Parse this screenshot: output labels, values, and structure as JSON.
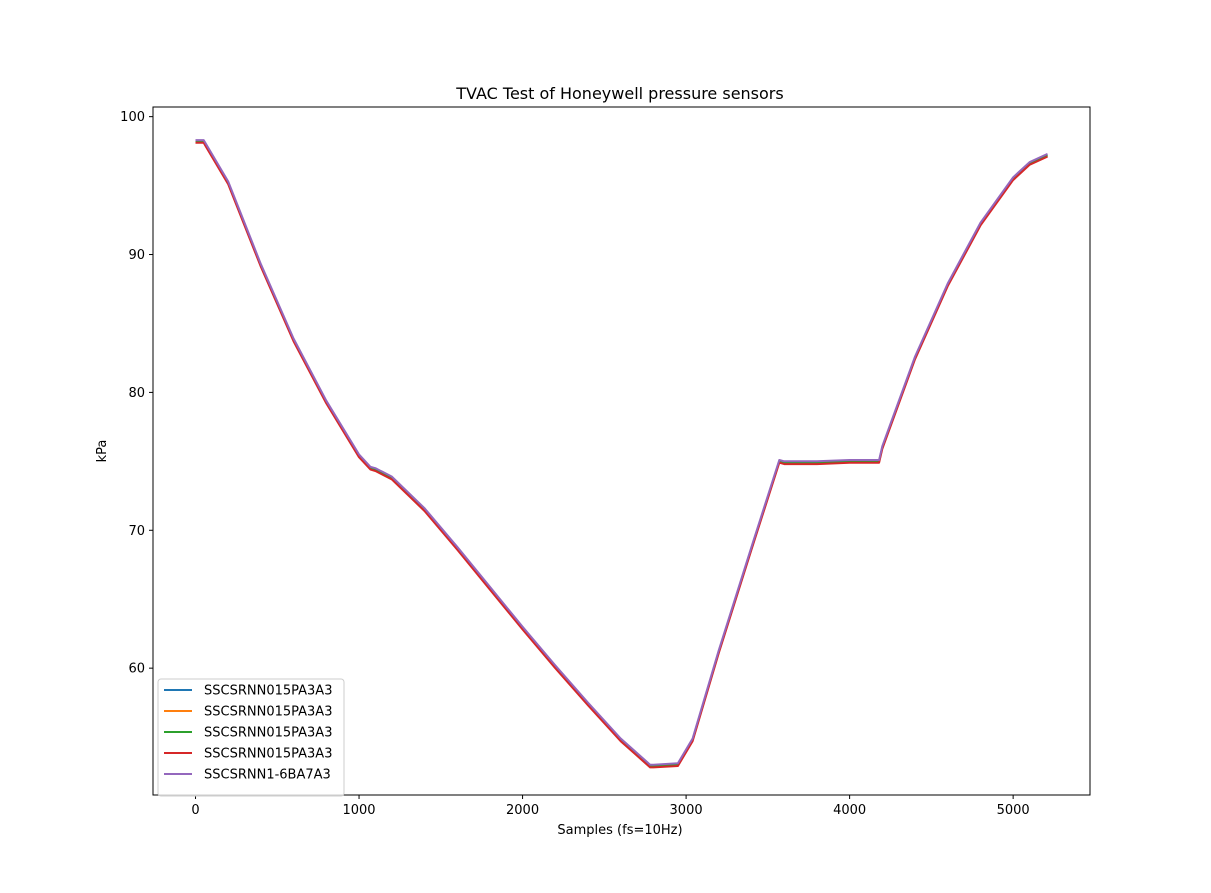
{
  "chart_data": {
    "type": "line",
    "title": "TVAC Test of Honeywell pressure sensors",
    "xlabel": "Samples (fs=10Hz)",
    "ylabel": "kPa",
    "xlim": [
      -260,
      5470
    ],
    "ylim": [
      50.8,
      100.7
    ],
    "xticks": [
      0,
      1000,
      2000,
      3000,
      4000,
      5000
    ],
    "yticks": [
      60,
      70,
      80,
      90,
      100
    ],
    "grid": false,
    "legend_position": "lower-left",
    "series": [
      {
        "name": "SSCSRNN015PA3A3",
        "color": "#1f77b4",
        "x": [
          0,
          50,
          60,
          200,
          400,
          600,
          800,
          1000,
          1070,
          1100,
          1200,
          1400,
          1600,
          1800,
          2000,
          2200,
          2400,
          2600,
          2780,
          2800,
          2950,
          3040,
          3200,
          3400,
          3570,
          3600,
          3800,
          4000,
          4180,
          4200,
          4400,
          4600,
          4800,
          5000,
          5100,
          5210
        ],
        "y": [
          98.2,
          98.2,
          98.0,
          95.2,
          89.2,
          83.8,
          79.3,
          75.4,
          74.5,
          74.4,
          73.8,
          71.5,
          68.7,
          65.8,
          62.9,
          60.1,
          57.4,
          54.8,
          52.9,
          52.9,
          53.0,
          54.8,
          61.2,
          68.7,
          75.0,
          74.9,
          74.9,
          75.0,
          75.0,
          76.0,
          82.5,
          87.8,
          92.2,
          95.5,
          96.6,
          97.2
        ]
      },
      {
        "name": "SSCSRNN015PA3A3",
        "color": "#ff7f0e",
        "x": [
          0,
          50,
          60,
          200,
          400,
          600,
          800,
          1000,
          1070,
          1100,
          1200,
          1400,
          1600,
          1800,
          2000,
          2200,
          2400,
          2600,
          2780,
          2800,
          2950,
          3040,
          3200,
          3400,
          3570,
          3600,
          3800,
          4000,
          4180,
          4200,
          4400,
          4600,
          4800,
          5000,
          5100,
          5210
        ],
        "y": [
          98.2,
          98.2,
          98.0,
          95.2,
          89.2,
          83.8,
          79.3,
          75.4,
          74.5,
          74.4,
          73.8,
          71.5,
          68.7,
          65.8,
          62.9,
          60.1,
          57.4,
          54.8,
          52.9,
          52.9,
          53.0,
          54.8,
          61.2,
          68.7,
          75.0,
          74.9,
          74.9,
          75.0,
          75.0,
          76.0,
          82.5,
          87.8,
          92.2,
          95.5,
          96.6,
          97.2
        ]
      },
      {
        "name": "SSCSRNN015PA3A3",
        "color": "#2ca02c",
        "x": [
          0,
          50,
          60,
          200,
          400,
          600,
          800,
          1000,
          1070,
          1100,
          1200,
          1400,
          1600,
          1800,
          2000,
          2200,
          2400,
          2600,
          2780,
          2800,
          2950,
          3040,
          3200,
          3400,
          3570,
          3600,
          3800,
          4000,
          4180,
          4200,
          4400,
          4600,
          4800,
          5000,
          5100,
          5210
        ],
        "y": [
          98.2,
          98.2,
          98.0,
          95.2,
          89.2,
          83.8,
          79.3,
          75.4,
          74.5,
          74.4,
          73.8,
          71.5,
          68.7,
          65.8,
          62.9,
          60.1,
          57.4,
          54.8,
          52.9,
          52.9,
          53.0,
          54.8,
          61.2,
          68.7,
          75.0,
          74.9,
          74.9,
          75.0,
          75.0,
          76.0,
          82.5,
          87.8,
          92.2,
          95.5,
          96.6,
          97.2
        ]
      },
      {
        "name": "SSCSRNN015PA3A3",
        "color": "#d62728",
        "x": [
          0,
          50,
          60,
          200,
          400,
          600,
          800,
          1000,
          1070,
          1100,
          1200,
          1400,
          1600,
          1800,
          2000,
          2200,
          2400,
          2600,
          2780,
          2800,
          2950,
          3040,
          3200,
          3400,
          3570,
          3600,
          3800,
          4000,
          4180,
          4200,
          4400,
          4600,
          4800,
          5000,
          5100,
          5210
        ],
        "y": [
          98.1,
          98.1,
          97.9,
          95.1,
          89.1,
          83.7,
          79.2,
          75.3,
          74.4,
          74.3,
          73.7,
          71.4,
          68.6,
          65.7,
          62.8,
          60.0,
          57.3,
          54.7,
          52.8,
          52.8,
          52.9,
          54.7,
          61.1,
          68.6,
          74.9,
          74.8,
          74.8,
          74.9,
          74.9,
          75.9,
          82.4,
          87.7,
          92.1,
          95.4,
          96.5,
          97.1
        ]
      },
      {
        "name": "SSCSRNN1-6BA7A3",
        "color": "#9467bd",
        "x": [
          0,
          50,
          60,
          200,
          400,
          600,
          800,
          1000,
          1070,
          1100,
          1200,
          1400,
          1600,
          1800,
          2000,
          2200,
          2400,
          2600,
          2780,
          2800,
          2950,
          3040,
          3200,
          3400,
          3570,
          3600,
          3800,
          4000,
          4180,
          4200,
          4400,
          4600,
          4800,
          5000,
          5100,
          5210
        ],
        "y": [
          98.3,
          98.3,
          98.1,
          95.3,
          89.3,
          83.9,
          79.4,
          75.5,
          74.6,
          74.5,
          73.9,
          71.6,
          68.8,
          65.9,
          63.0,
          60.2,
          57.5,
          54.9,
          53.0,
          53.0,
          53.1,
          54.9,
          61.3,
          68.8,
          75.1,
          75.0,
          75.0,
          75.1,
          75.1,
          76.1,
          82.6,
          87.9,
          92.3,
          95.6,
          96.7,
          97.3
        ]
      }
    ]
  }
}
